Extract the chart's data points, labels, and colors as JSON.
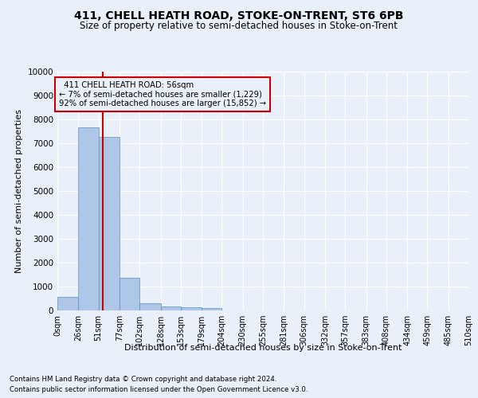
{
  "title": "411, CHELL HEATH ROAD, STOKE-ON-TRENT, ST6 6PB",
  "subtitle": "Size of property relative to semi-detached houses in Stoke-on-Trent",
  "xlabel_bottom": "Distribution of semi-detached houses by size in Stoke-on-Trent",
  "ylabel": "Number of semi-detached properties",
  "footnote1": "Contains HM Land Registry data © Crown copyright and database right 2024.",
  "footnote2": "Contains public sector information licensed under the Open Government Licence v3.0.",
  "bar_values": [
    570,
    7650,
    7250,
    1370,
    310,
    155,
    120,
    95,
    0,
    0,
    0,
    0,
    0,
    0,
    0,
    0,
    0,
    0,
    0,
    0
  ],
  "bin_edges": [
    0,
    26,
    51,
    77,
    102,
    128,
    153,
    179,
    204,
    230,
    255,
    281,
    306,
    332,
    357,
    383,
    408,
    434,
    459,
    485,
    510
  ],
  "bar_color": "#aec6e8",
  "bar_edgecolor": "#5a8fc0",
  "subject_size": 56,
  "subject_label": "411 CHELL HEATH ROAD: 56sqm",
  "smaller_pct": "7%",
  "smaller_count": "1,229",
  "larger_pct": "92%",
  "larger_count": "15,852",
  "redline_color": "#cc0000",
  "ylim": [
    0,
    10000
  ],
  "yticks": [
    0,
    1000,
    2000,
    3000,
    4000,
    5000,
    6000,
    7000,
    8000,
    9000,
    10000
  ],
  "bg_color": "#eaf0f9",
  "grid_color": "#ffffff",
  "title_fontsize": 10,
  "subtitle_fontsize": 8.5,
  "axis_fontsize": 7.5
}
